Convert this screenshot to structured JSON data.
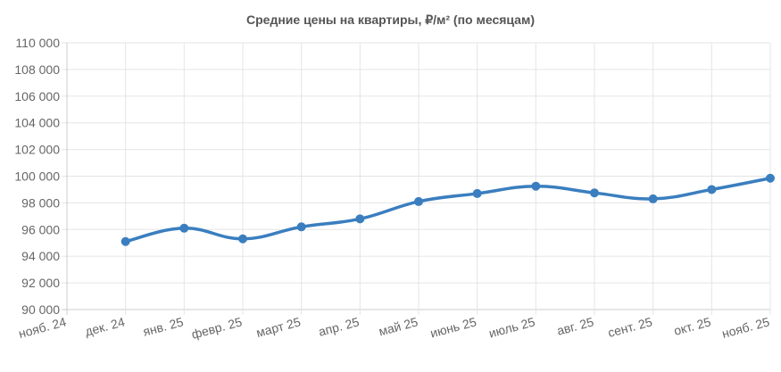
{
  "chart_data": {
    "type": "line",
    "title": "Средние цены на квартиры, ₽/м² (по месяцам)",
    "categories": [
      "нояб. 24",
      "дек. 24",
      "янв. 25",
      "февр. 25",
      "март 25",
      "апр. 25",
      "май 25",
      "июнь 25",
      "июль 25",
      "авг. 25",
      "сент. 25",
      "окт. 25",
      "нояб. 25"
    ],
    "series": [
      {
        "values": [
          null,
          95100,
          96100,
          95300,
          96200,
          96800,
          98100,
          98700,
          99250,
          98750,
          98300,
          99000,
          99850
        ],
        "color": "#3a7ebf"
      }
    ],
    "ylim": [
      90000,
      110000
    ],
    "y_ticks": [
      "90 000",
      "92 000",
      "94 000",
      "96 000",
      "98 000",
      "100 000",
      "102 000",
      "104 000",
      "106 000",
      "108 000",
      "110 000"
    ],
    "grid": true,
    "legend": "none"
  }
}
